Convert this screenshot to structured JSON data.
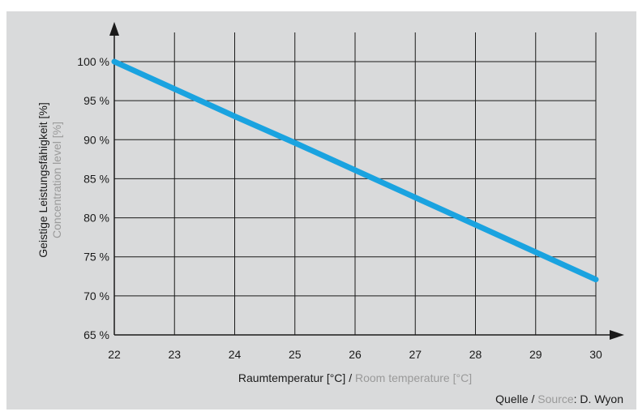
{
  "chart_data": {
    "type": "line",
    "x": [
      22,
      23,
      24,
      25,
      26,
      27,
      28,
      29,
      30
    ],
    "series": [
      {
        "values": [
          100,
          96.5,
          93,
          89.6,
          86.1,
          82.6,
          79.1,
          75.6,
          72.1
        ],
        "color": "#1aa3e0"
      }
    ],
    "xlim": [
      22,
      30
    ],
    "ylim": [
      65,
      100
    ],
    "x_ticks": [
      "22",
      "23",
      "24",
      "25",
      "26",
      "27",
      "28",
      "29",
      "30"
    ],
    "y_ticks": [
      "65 %",
      "70 %",
      "75 %",
      "80 %",
      "85 %",
      "90 %",
      "95 %",
      "100 %"
    ],
    "xlabel": {
      "primary": "Raumtemperatur [°C]",
      "separator": " / ",
      "secondary": "Room temperature [°C]"
    },
    "ylabel": {
      "primary": "Geistige Leistungsfähigkeit [%]",
      "secondary": "Concentration level [%]"
    },
    "source": {
      "label_de": "Quelle",
      "separator": " / ",
      "label_en": "Source",
      "value": ": D. Wyon"
    },
    "grid": true,
    "colors": {
      "background": "#d9dadb",
      "grid": "#1a1a1a",
      "line": "#1aa3e0",
      "secondary_text": "#9a9a9a"
    }
  }
}
